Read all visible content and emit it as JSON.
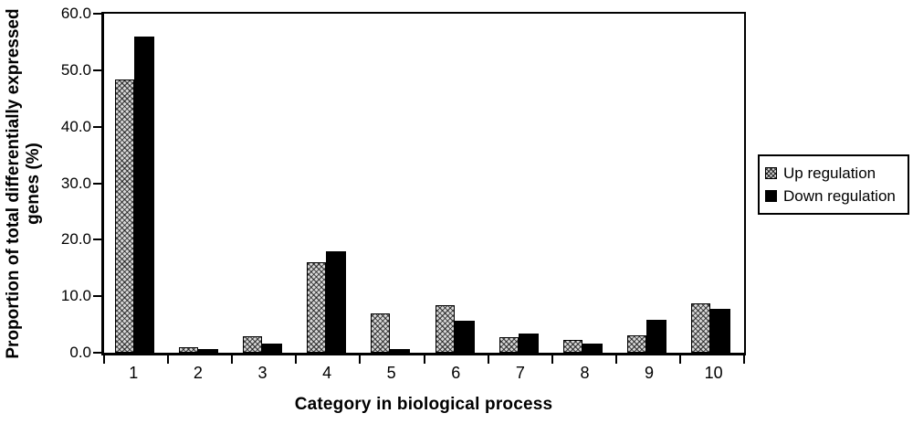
{
  "figure": {
    "background": "#ffffff"
  },
  "chart_data": {
    "type": "bar",
    "title": "",
    "xlabel": "Category in biological process",
    "ylabel": "Proportion of total differentially expressed genes (%)",
    "categories": [
      "1",
      "2",
      "3",
      "4",
      "5",
      "6",
      "7",
      "8",
      "9",
      "10"
    ],
    "series": [
      {
        "name": "Up regulation",
        "style": "hatched",
        "fill": "#d9d9d9",
        "hatch": "diagonal-crosshatch",
        "values": [
          48.4,
          1.0,
          2.9,
          16.0,
          7.0,
          8.4,
          2.7,
          2.2,
          3.0,
          8.7
        ]
      },
      {
        "name": "Down regulation",
        "style": "solid",
        "fill": "#000000",
        "values": [
          55.9,
          0.7,
          1.7,
          17.9,
          0.7,
          5.7,
          3.4,
          1.6,
          5.8,
          7.7
        ]
      }
    ],
    "ylim": [
      0,
      60
    ],
    "yticks": [
      0,
      10,
      20,
      30,
      40,
      50,
      60
    ],
    "ytick_labels": [
      "0.0",
      "10.0",
      "20.0",
      "30.0",
      "40.0",
      "50.0",
      "60.0"
    ],
    "grid": false,
    "legend_position": "right-outside",
    "axis_color": "#000000"
  }
}
